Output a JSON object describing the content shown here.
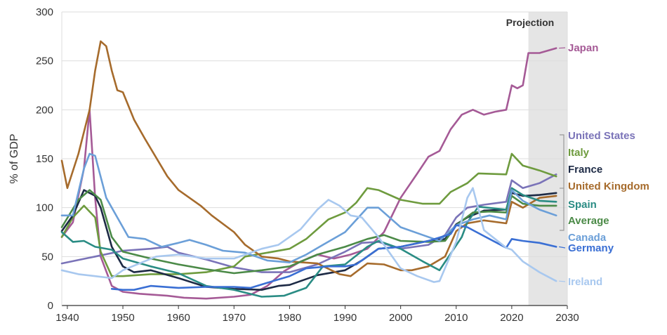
{
  "chart_data": {
    "type": "line",
    "title": "",
    "xlabel": "",
    "ylabel": "% of GDP",
    "xlim": [
      1939,
      2030
    ],
    "ylim": [
      0,
      300
    ],
    "x_ticks": [
      1940,
      1950,
      1960,
      1970,
      1980,
      1990,
      2000,
      2010,
      2020,
      2030
    ],
    "y_ticks": [
      0,
      50,
      100,
      150,
      200,
      250,
      300
    ],
    "grid": "horizontal",
    "annotation": {
      "text": "Projection",
      "x_start": 2023,
      "x_end": 2030
    },
    "series": [
      {
        "name": "Japan",
        "color": "#a55a96",
        "points": [
          [
            1939,
            70
          ],
          [
            1941,
            85
          ],
          [
            1943,
            140
          ],
          [
            1944,
            200
          ],
          [
            1945,
            110
          ],
          [
            1946,
            50
          ],
          [
            1948,
            20
          ],
          [
            1950,
            14
          ],
          [
            1953,
            12
          ],
          [
            1958,
            10
          ],
          [
            1961,
            8
          ],
          [
            1965,
            7
          ],
          [
            1970,
            9
          ],
          [
            1973,
            11
          ],
          [
            1976,
            20
          ],
          [
            1979,
            35
          ],
          [
            1982,
            45
          ],
          [
            1985,
            52
          ],
          [
            1988,
            48
          ],
          [
            1991,
            52
          ],
          [
            1994,
            58
          ],
          [
            1997,
            75
          ],
          [
            2000,
            110
          ],
          [
            2003,
            135
          ],
          [
            2005,
            152
          ],
          [
            2007,
            158
          ],
          [
            2009,
            180
          ],
          [
            2011,
            195
          ],
          [
            2013,
            200
          ],
          [
            2015,
            195
          ],
          [
            2017,
            198
          ],
          [
            2019,
            200
          ],
          [
            2020,
            225
          ],
          [
            2021,
            222
          ],
          [
            2022,
            225
          ],
          [
            2023,
            258
          ],
          [
            2025,
            258
          ],
          [
            2028,
            263
          ]
        ]
      },
      {
        "name": "United States",
        "color": "#7a73b8",
        "points": [
          [
            1939,
            43
          ],
          [
            1945,
            50
          ],
          [
            1950,
            56
          ],
          [
            1955,
            58
          ],
          [
            1958,
            60
          ],
          [
            1960,
            54
          ],
          [
            1965,
            47
          ],
          [
            1970,
            39
          ],
          [
            1975,
            34
          ],
          [
            1980,
            34
          ],
          [
            1985,
            42
          ],
          [
            1990,
            55
          ],
          [
            1993,
            64
          ],
          [
            1996,
            65
          ],
          [
            2000,
            58
          ],
          [
            2005,
            62
          ],
          [
            2008,
            72
          ],
          [
            2010,
            90
          ],
          [
            2012,
            100
          ],
          [
            2015,
            103
          ],
          [
            2019,
            106
          ],
          [
            2020,
            128
          ],
          [
            2022,
            120
          ],
          [
            2025,
            125
          ],
          [
            2028,
            134
          ]
        ]
      },
      {
        "name": "Italy",
        "color": "#6e9b3e",
        "points": [
          [
            1939,
            70
          ],
          [
            1941,
            90
          ],
          [
            1943,
            102
          ],
          [
            1945,
            90
          ],
          [
            1946,
            55
          ],
          [
            1948,
            30
          ],
          [
            1950,
            30
          ],
          [
            1955,
            32
          ],
          [
            1960,
            32
          ],
          [
            1965,
            34
          ],
          [
            1970,
            40
          ],
          [
            1972,
            50
          ],
          [
            1975,
            53
          ],
          [
            1980,
            58
          ],
          [
            1983,
            68
          ],
          [
            1987,
            88
          ],
          [
            1990,
            95
          ],
          [
            1992,
            105
          ],
          [
            1994,
            120
          ],
          [
            1996,
            118
          ],
          [
            2000,
            108
          ],
          [
            2004,
            104
          ],
          [
            2007,
            104
          ],
          [
            2009,
            116
          ],
          [
            2012,
            125
          ],
          [
            2014,
            135
          ],
          [
            2019,
            134
          ],
          [
            2020,
            155
          ],
          [
            2022,
            143
          ],
          [
            2025,
            138
          ],
          [
            2028,
            132
          ]
        ]
      },
      {
        "name": "France",
        "color": "#1d2a45",
        "points": [
          [
            1939,
            76
          ],
          [
            1941,
            92
          ],
          [
            1943,
            118
          ],
          [
            1945,
            112
          ],
          [
            1946,
            100
          ],
          [
            1948,
            60
          ],
          [
            1950,
            40
          ],
          [
            1952,
            34
          ],
          [
            1955,
            36
          ],
          [
            1960,
            28
          ],
          [
            1965,
            19
          ],
          [
            1970,
            17
          ],
          [
            1975,
            16
          ],
          [
            1978,
            20
          ],
          [
            1980,
            21
          ],
          [
            1985,
            31
          ],
          [
            1990,
            36
          ],
          [
            1993,
            46
          ],
          [
            1996,
            58
          ],
          [
            2000,
            60
          ],
          [
            2005,
            66
          ],
          [
            2008,
            68
          ],
          [
            2010,
            83
          ],
          [
            2012,
            90
          ],
          [
            2015,
            97
          ],
          [
            2019,
            98
          ],
          [
            2020,
            115
          ],
          [
            2022,
            112
          ],
          [
            2025,
            113
          ],
          [
            2028,
            115
          ]
        ]
      },
      {
        "name": "United Kingdom",
        "color": "#a66b2c",
        "points": [
          [
            1939,
            148
          ],
          [
            1940,
            120
          ],
          [
            1942,
            155
          ],
          [
            1944,
            200
          ],
          [
            1945,
            240
          ],
          [
            1946,
            270
          ],
          [
            1947,
            265
          ],
          [
            1948,
            240
          ],
          [
            1949,
            220
          ],
          [
            1950,
            218
          ],
          [
            1952,
            190
          ],
          [
            1954,
            170
          ],
          [
            1958,
            132
          ],
          [
            1960,
            118
          ],
          [
            1964,
            102
          ],
          [
            1966,
            92
          ],
          [
            1970,
            75
          ],
          [
            1972,
            62
          ],
          [
            1975,
            50
          ],
          [
            1978,
            48
          ],
          [
            1980,
            45
          ],
          [
            1985,
            43
          ],
          [
            1989,
            32
          ],
          [
            1991,
            30
          ],
          [
            1994,
            43
          ],
          [
            1997,
            42
          ],
          [
            2000,
            36
          ],
          [
            2002,
            36
          ],
          [
            2005,
            40
          ],
          [
            2008,
            50
          ],
          [
            2010,
            76
          ],
          [
            2012,
            84
          ],
          [
            2015,
            87
          ],
          [
            2019,
            84
          ],
          [
            2020,
            106
          ],
          [
            2022,
            100
          ],
          [
            2025,
            110
          ],
          [
            2028,
            112
          ]
        ]
      },
      {
        "name": "Spain",
        "color": "#2a8c84",
        "points": [
          [
            1939,
            75
          ],
          [
            1941,
            65
          ],
          [
            1943,
            66
          ],
          [
            1945,
            60
          ],
          [
            1948,
            57
          ],
          [
            1950,
            48
          ],
          [
            1955,
            40
          ],
          [
            1960,
            33
          ],
          [
            1965,
            20
          ],
          [
            1970,
            16
          ],
          [
            1975,
            9
          ],
          [
            1979,
            10
          ],
          [
            1983,
            18
          ],
          [
            1986,
            40
          ],
          [
            1990,
            42
          ],
          [
            1994,
            60
          ],
          [
            1996,
            66
          ],
          [
            2000,
            58
          ],
          [
            2004,
            45
          ],
          [
            2007,
            36
          ],
          [
            2009,
            53
          ],
          [
            2011,
            70
          ],
          [
            2012,
            85
          ],
          [
            2014,
            101
          ],
          [
            2019,
            98
          ],
          [
            2020,
            120
          ],
          [
            2022,
            113
          ],
          [
            2025,
            107
          ],
          [
            2028,
            106
          ]
        ]
      },
      {
        "name": "Average",
        "color": "#4b8a47",
        "points": [
          [
            1939,
            80
          ],
          [
            1942,
            108
          ],
          [
            1944,
            118
          ],
          [
            1946,
            108
          ],
          [
            1948,
            70
          ],
          [
            1950,
            55
          ],
          [
            1955,
            48
          ],
          [
            1960,
            42
          ],
          [
            1965,
            37
          ],
          [
            1970,
            33
          ],
          [
            1975,
            36
          ],
          [
            1980,
            40
          ],
          [
            1985,
            52
          ],
          [
            1990,
            60
          ],
          [
            1994,
            68
          ],
          [
            1997,
            72
          ],
          [
            2000,
            66
          ],
          [
            2005,
            65
          ],
          [
            2008,
            66
          ],
          [
            2010,
            82
          ],
          [
            2013,
            95
          ],
          [
            2016,
            96
          ],
          [
            2019,
            95
          ],
          [
            2020,
            112
          ],
          [
            2022,
            104
          ],
          [
            2025,
            102
          ],
          [
            2028,
            102
          ]
        ]
      },
      {
        "name": "Canada",
        "color": "#6b9fd8",
        "points": [
          [
            1939,
            92
          ],
          [
            1941,
            92
          ],
          [
            1943,
            140
          ],
          [
            1944,
            155
          ],
          [
            1945,
            153
          ],
          [
            1947,
            110
          ],
          [
            1949,
            90
          ],
          [
            1951,
            70
          ],
          [
            1954,
            68
          ],
          [
            1957,
            60
          ],
          [
            1960,
            64
          ],
          [
            1962,
            67
          ],
          [
            1965,
            62
          ],
          [
            1968,
            56
          ],
          [
            1972,
            54
          ],
          [
            1976,
            46
          ],
          [
            1980,
            44
          ],
          [
            1983,
            52
          ],
          [
            1986,
            62
          ],
          [
            1990,
            75
          ],
          [
            1994,
            100
          ],
          [
            1996,
            100
          ],
          [
            2000,
            80
          ],
          [
            2004,
            72
          ],
          [
            2007,
            66
          ],
          [
            2010,
            82
          ],
          [
            2013,
            88
          ],
          [
            2016,
            92
          ],
          [
            2019,
            88
          ],
          [
            2020,
            118
          ],
          [
            2022,
            107
          ],
          [
            2025,
            98
          ],
          [
            2028,
            92
          ]
        ]
      },
      {
        "name": "Germany",
        "color": "#3a6fd4",
        "points": [
          [
            1948,
            17
          ],
          [
            1950,
            16
          ],
          [
            1952,
            16
          ],
          [
            1955,
            20
          ],
          [
            1960,
            18
          ],
          [
            1965,
            19
          ],
          [
            1970,
            19
          ],
          [
            1973,
            18
          ],
          [
            1977,
            25
          ],
          [
            1980,
            30
          ],
          [
            1983,
            38
          ],
          [
            1987,
            40
          ],
          [
            1990,
            40
          ],
          [
            1992,
            42
          ],
          [
            1996,
            58
          ],
          [
            2000,
            60
          ],
          [
            2005,
            66
          ],
          [
            2009,
            73
          ],
          [
            2010,
            82
          ],
          [
            2012,
            80
          ],
          [
            2015,
            71
          ],
          [
            2019,
            59
          ],
          [
            2020,
            68
          ],
          [
            2022,
            66
          ],
          [
            2025,
            64
          ],
          [
            2028,
            60
          ]
        ]
      },
      {
        "name": "Ireland",
        "color": "#a8c8ef",
        "points": [
          [
            1939,
            36
          ],
          [
            1942,
            32
          ],
          [
            1945,
            30
          ],
          [
            1948,
            28
          ],
          [
            1950,
            36
          ],
          [
            1953,
            43
          ],
          [
            1956,
            50
          ],
          [
            1960,
            52
          ],
          [
            1965,
            48
          ],
          [
            1970,
            48
          ],
          [
            1975,
            58
          ],
          [
            1978,
            62
          ],
          [
            1982,
            78
          ],
          [
            1985,
            98
          ],
          [
            1987,
            108
          ],
          [
            1989,
            102
          ],
          [
            1991,
            92
          ],
          [
            1993,
            90
          ],
          [
            1996,
            70
          ],
          [
            2000,
            38
          ],
          [
            2003,
            30
          ],
          [
            2006,
            24
          ],
          [
            2007,
            25
          ],
          [
            2010,
            65
          ],
          [
            2012,
            110
          ],
          [
            2013,
            120
          ],
          [
            2015,
            77
          ],
          [
            2019,
            59
          ],
          [
            2020,
            57
          ],
          [
            2022,
            45
          ],
          [
            2025,
            34
          ],
          [
            2028,
            25
          ]
        ]
      }
    ]
  },
  "projection_label": "Projection",
  "labels": [
    "Japan",
    "United States",
    "Italy",
    "France",
    "United Kingdom",
    "Spain",
    "Average",
    "Canada",
    "Germany",
    "Ireland"
  ]
}
